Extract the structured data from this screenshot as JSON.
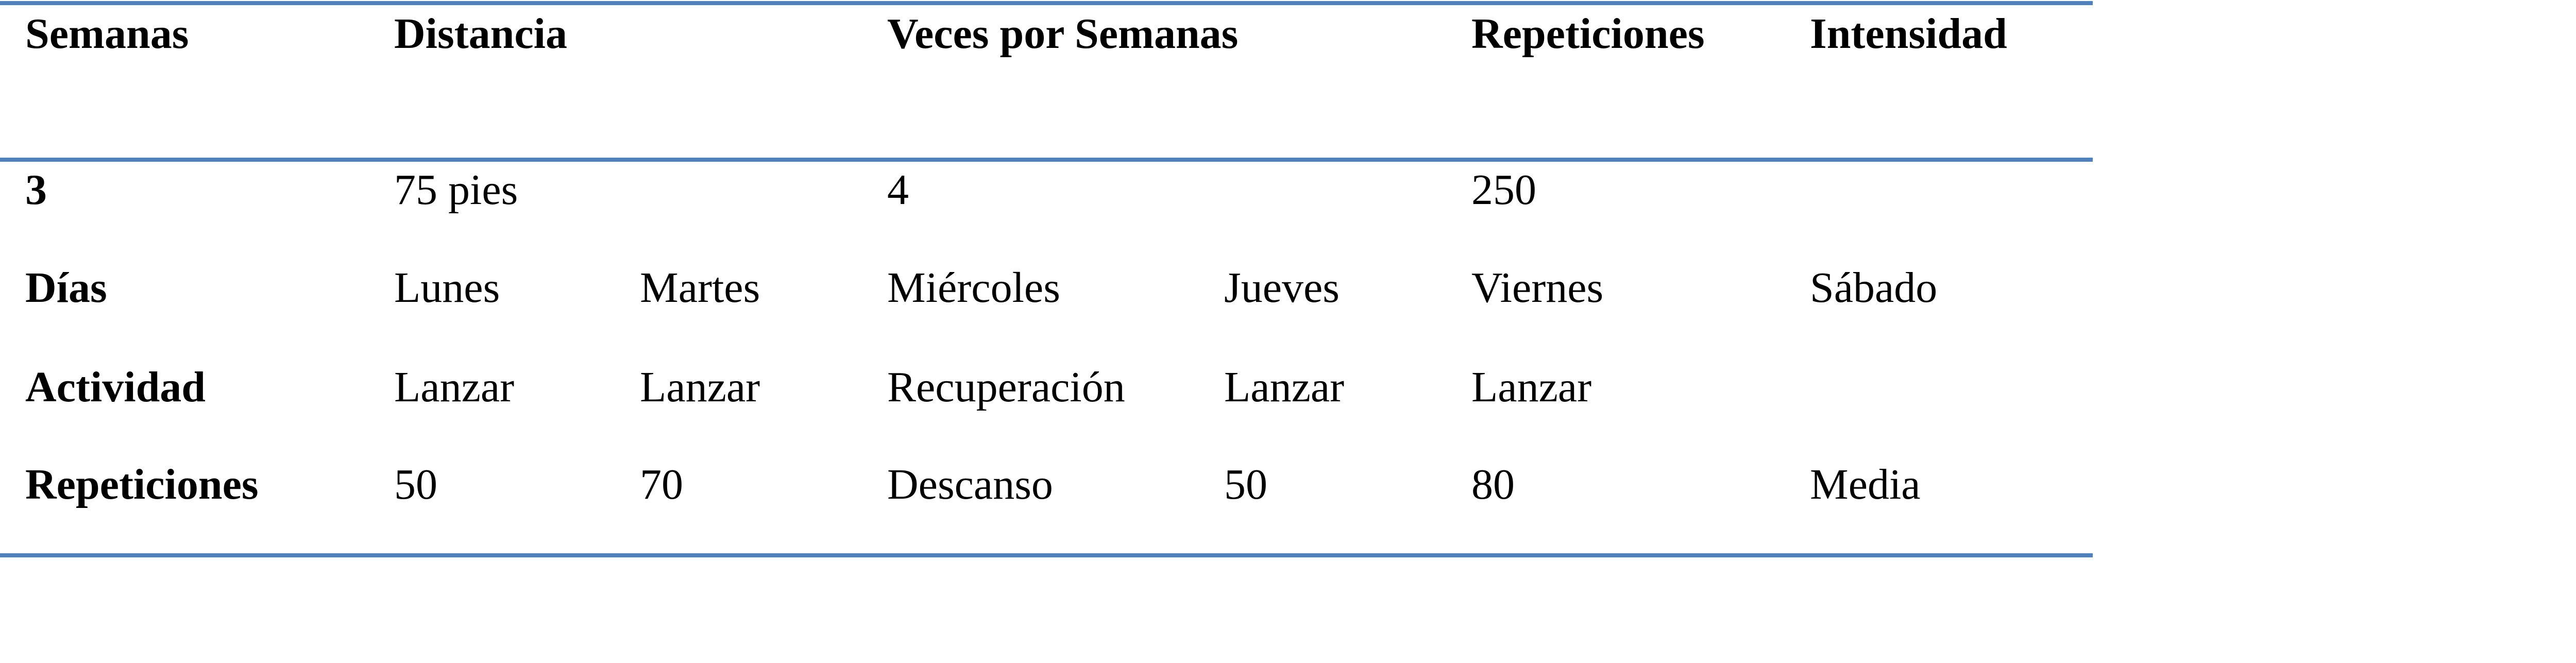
{
  "table": {
    "header": {
      "semanas": "Semanas",
      "distancia": "Distancia",
      "veces": "Veces por Semanas",
      "repeticiones": "Repeticiones",
      "intensidad": "Intensidad"
    },
    "summary": {
      "semanas": "3",
      "distancia": "75 pies",
      "veces": "4",
      "repeticiones": "250"
    },
    "dias": {
      "label": "Días",
      "values": [
        "Lunes",
        "Martes",
        "Miércoles",
        "Jueves",
        "Viernes",
        "Sábado"
      ]
    },
    "actividad": {
      "label": "Actividad",
      "values": [
        "Lanzar",
        "Lanzar",
        "Recuperación",
        "Lanzar",
        "Lanzar",
        ""
      ]
    },
    "repeticiones": {
      "label": "Repeticiones",
      "values": [
        "50",
        "70",
        "Descanso",
        "50",
        "80",
        "Media"
      ]
    }
  },
  "colors": {
    "rule": "#4f81bd"
  }
}
